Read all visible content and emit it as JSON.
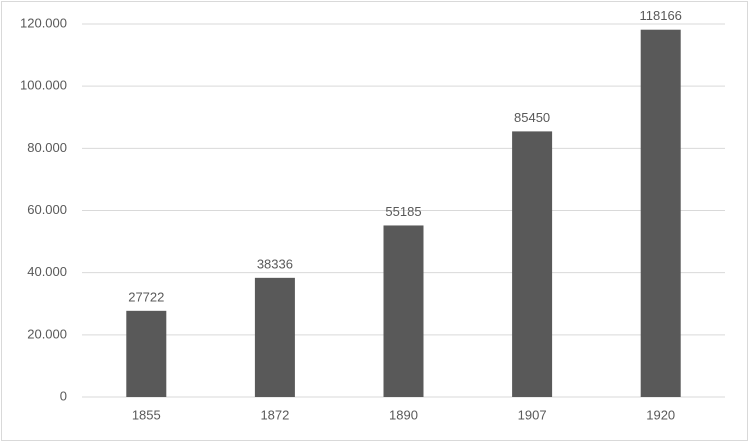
{
  "chart_data": {
    "type": "bar",
    "categories": [
      "1855",
      "1872",
      "1890",
      "1907",
      "1920"
    ],
    "values": [
      27722,
      38336,
      55185,
      85450,
      118166
    ],
    "color": "#595959",
    "ylim": [
      0,
      120000
    ],
    "yticks": [
      0,
      {
        "value": 20000,
        "label": "20.000"
      },
      {
        "value": 40000,
        "label": "40.000"
      },
      {
        "value": 60000,
        "label": "60.000"
      },
      {
        "value": 80000,
        "label": "80.000"
      },
      {
        "value": 100000,
        "label": "100.000"
      },
      {
        "value": 120000,
        "label": "120.000"
      }
    ],
    "grid": true
  }
}
